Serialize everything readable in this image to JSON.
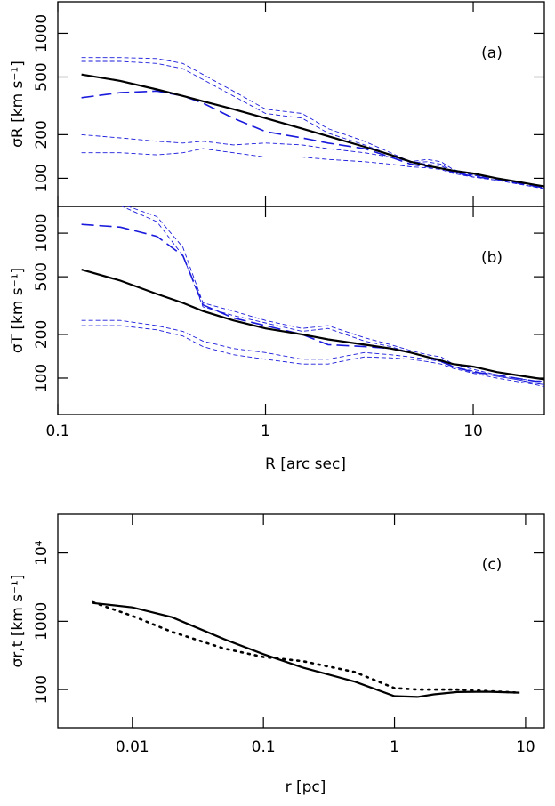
{
  "chart_data": [
    {
      "type": "line",
      "annotation": "(a)",
      "ylabel": "σR [km s⁻¹]",
      "log_x": true,
      "log_y": true,
      "xlim": [
        0.1,
        22
      ],
      "ylim": [
        64,
        1650
      ],
      "xticks": [
        0.1,
        1,
        10
      ],
      "yticks": [
        100,
        200,
        500,
        1000
      ],
      "x_tick_labels": false,
      "x": [
        0.13,
        0.2,
        0.3,
        0.4,
        0.5,
        0.7,
        1,
        1.5,
        2,
        3,
        4,
        5,
        6,
        7,
        8,
        10,
        13,
        16,
        20,
        22
      ],
      "series": [
        {
          "color": "#1a1adc",
          "dash": "short",
          "values": [
            680,
            680,
            670,
            620,
            520,
            400,
            300,
            280,
            220,
            180,
            150,
            130,
            135,
            130,
            115,
            105,
            100,
            95,
            90,
            88
          ]
        },
        {
          "color": "#1a1adc",
          "dash": "short",
          "values": [
            640,
            640,
            620,
            570,
            480,
            370,
            280,
            260,
            205,
            170,
            145,
            128,
            130,
            125,
            112,
            102,
            97,
            92,
            87,
            85
          ]
        },
        {
          "color": "#1a1adc",
          "dash": "short",
          "values": [
            200,
            190,
            180,
            175,
            180,
            170,
            175,
            170,
            160,
            150,
            140,
            130,
            125,
            122,
            110,
            105,
            100,
            95,
            90,
            88
          ]
        },
        {
          "color": "#1a1adc",
          "dash": "short",
          "values": [
            150,
            150,
            145,
            150,
            160,
            150,
            140,
            140,
            135,
            130,
            125,
            120,
            118,
            115,
            108,
            102,
            97,
            92,
            87,
            84
          ]
        },
        {
          "color": "#1a1adc",
          "dash": "long",
          "values": [
            360,
            390,
            400,
            370,
            330,
            260,
            210,
            190,
            175,
            160,
            140,
            125,
            120,
            118,
            110,
            103,
            98,
            93,
            88,
            86
          ]
        },
        {
          "color": "#000000",
          "dash": "solid",
          "values": [
            520,
            470,
            410,
            370,
            340,
            300,
            260,
            220,
            195,
            165,
            145,
            130,
            122,
            117,
            113,
            108,
            100,
            95,
            90,
            88
          ]
        }
      ]
    },
    {
      "type": "line",
      "annotation": "(b)",
      "ylabel": "σT [km s⁻¹]",
      "xlabel": "R [arc sec]",
      "log_x": true,
      "log_y": true,
      "xlim": [
        0.1,
        22
      ],
      "ylim": [
        56,
        1530
      ],
      "xticks": [
        0.1,
        1,
        10
      ],
      "yticks": [
        100,
        200,
        500,
        1000
      ],
      "x_tick_labels": true,
      "x": [
        0.13,
        0.2,
        0.3,
        0.4,
        0.5,
        0.7,
        1,
        1.5,
        2,
        3,
        4,
        5,
        6,
        7,
        8,
        10,
        13,
        16,
        20,
        22
      ],
      "series": [
        {
          "color": "#1a1adc",
          "dash": "short",
          "values": [
            null,
            1600,
            1300,
            800,
            330,
            290,
            250,
            220,
            230,
            190,
            170,
            155,
            145,
            140,
            125,
            115,
            105,
            100,
            95,
            95
          ]
        },
        {
          "color": "#1a1adc",
          "dash": "short",
          "values": [
            null,
            1550,
            1200,
            700,
            310,
            270,
            240,
            210,
            220,
            180,
            165,
            150,
            140,
            135,
            120,
            112,
            103,
            98,
            92,
            90
          ]
        },
        {
          "color": "#1a1adc",
          "dash": "short",
          "values": [
            250,
            250,
            230,
            210,
            180,
            160,
            150,
            135,
            135,
            150,
            145,
            140,
            135,
            130,
            120,
            110,
            103,
            98,
            92,
            90
          ]
        },
        {
          "color": "#1a1adc",
          "dash": "short",
          "values": [
            230,
            230,
            215,
            195,
            165,
            145,
            135,
            125,
            125,
            140,
            138,
            135,
            130,
            125,
            117,
            108,
            100,
            95,
            90,
            87
          ]
        },
        {
          "color": "#1a1adc",
          "dash": "long",
          "values": [
            1150,
            1100,
            950,
            700,
            320,
            260,
            230,
            200,
            170,
            165,
            160,
            150,
            140,
            130,
            120,
            110,
            105,
            100,
            95,
            95
          ]
        },
        {
          "color": "#000000",
          "dash": "solid",
          "values": [
            560,
            470,
            380,
            330,
            290,
            250,
            220,
            200,
            185,
            170,
            160,
            150,
            140,
            132,
            125,
            120,
            110,
            105,
            100,
            98
          ]
        }
      ]
    },
    {
      "type": "line",
      "annotation": "(c)",
      "ylabel": "σr,t [km s⁻¹]",
      "xlabel": "r [pc]",
      "log_x": true,
      "log_y": true,
      "xlim": [
        0.0027,
        13.9
      ],
      "ylim": [
        27.6,
        37000
      ],
      "xticks": [
        0.01,
        0.1,
        1,
        10
      ],
      "yticks": [
        100,
        1000,
        {
          "value": 10000,
          "label": "10⁴"
        }
      ],
      "x_tick_labels": true,
      "x": [
        0.005,
        0.01,
        0.02,
        0.05,
        0.1,
        0.2,
        0.5,
        1,
        1.5,
        2,
        3,
        5,
        9
      ],
      "series": [
        {
          "color": "#000000",
          "dash": "solid",
          "values": [
            1850,
            1600,
            1150,
            550,
            330,
            210,
            130,
            80,
            78,
            85,
            92,
            93,
            90
          ]
        },
        {
          "color": "#000000",
          "dash": "dotted",
          "values": [
            1900,
            1200,
            700,
            400,
            300,
            260,
            180,
            105,
            100,
            100,
            100,
            95,
            90
          ]
        }
      ]
    }
  ]
}
